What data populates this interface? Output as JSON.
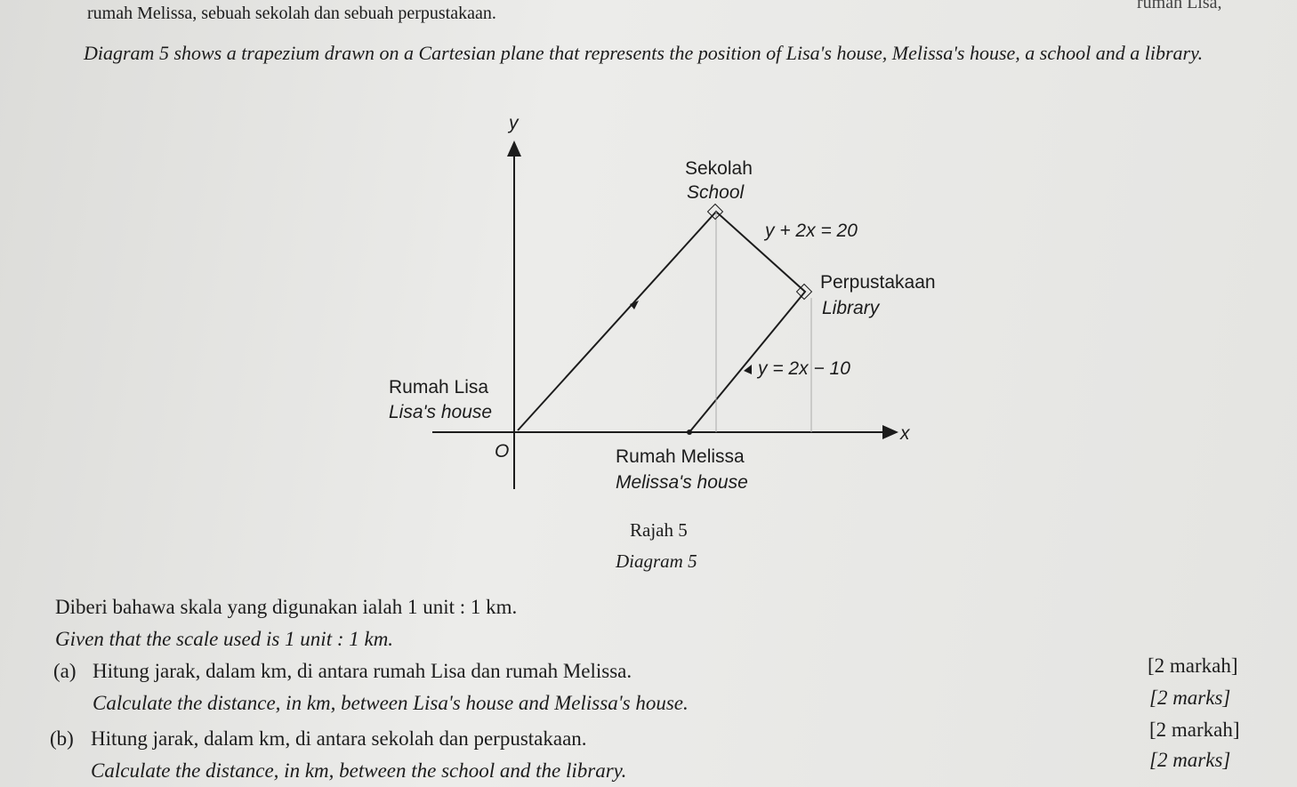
{
  "header": {
    "continuation": "rumah Melissa, sebuah sekolah dan sebuah perpustakaan.",
    "corner": "rumah Lisa,",
    "description": "Diagram 5 shows a trapezium drawn on a Cartesian plane that represents the position of Lisa's house, Melissa's house, a school and a library."
  },
  "diagram": {
    "y_axis": "y",
    "x_axis": "x",
    "origin": "O",
    "school_malay": "Sekolah",
    "school_english": "School",
    "school_line": "y + 2x = 20",
    "library_malay": "Perpustakaan",
    "library_english": "Library",
    "library_line": "y = 2x − 10",
    "lisa_malay": "Rumah Lisa",
    "lisa_english": "Lisa's house",
    "melissa_malay": "Rumah Melissa",
    "melissa_english": "Melissa's house"
  },
  "caption": {
    "malay": "Rajah 5",
    "english": "Diagram 5"
  },
  "given": {
    "malay": "Diberi bahawa skala yang digunakan ialah 1 unit : 1 km.",
    "english": "Given that the scale used is 1 unit : 1 km."
  },
  "questions": [
    {
      "label": "(a)",
      "malay": "Hitung jarak, dalam km, di antara rumah Lisa dan rumah Melissa.",
      "english": "Calculate the distance, in km, between Lisa's house and Melissa's house.",
      "marks_malay": "[2 markah]",
      "marks_english": "[2 marks]"
    },
    {
      "label": "(b)",
      "malay": "Hitung jarak, dalam km, di antara sekolah dan perpustakaan.",
      "english": "Calculate the distance, in km, between the school and the library.",
      "marks_malay": "[2 markah]",
      "marks_english": "[2 marks]"
    }
  ]
}
